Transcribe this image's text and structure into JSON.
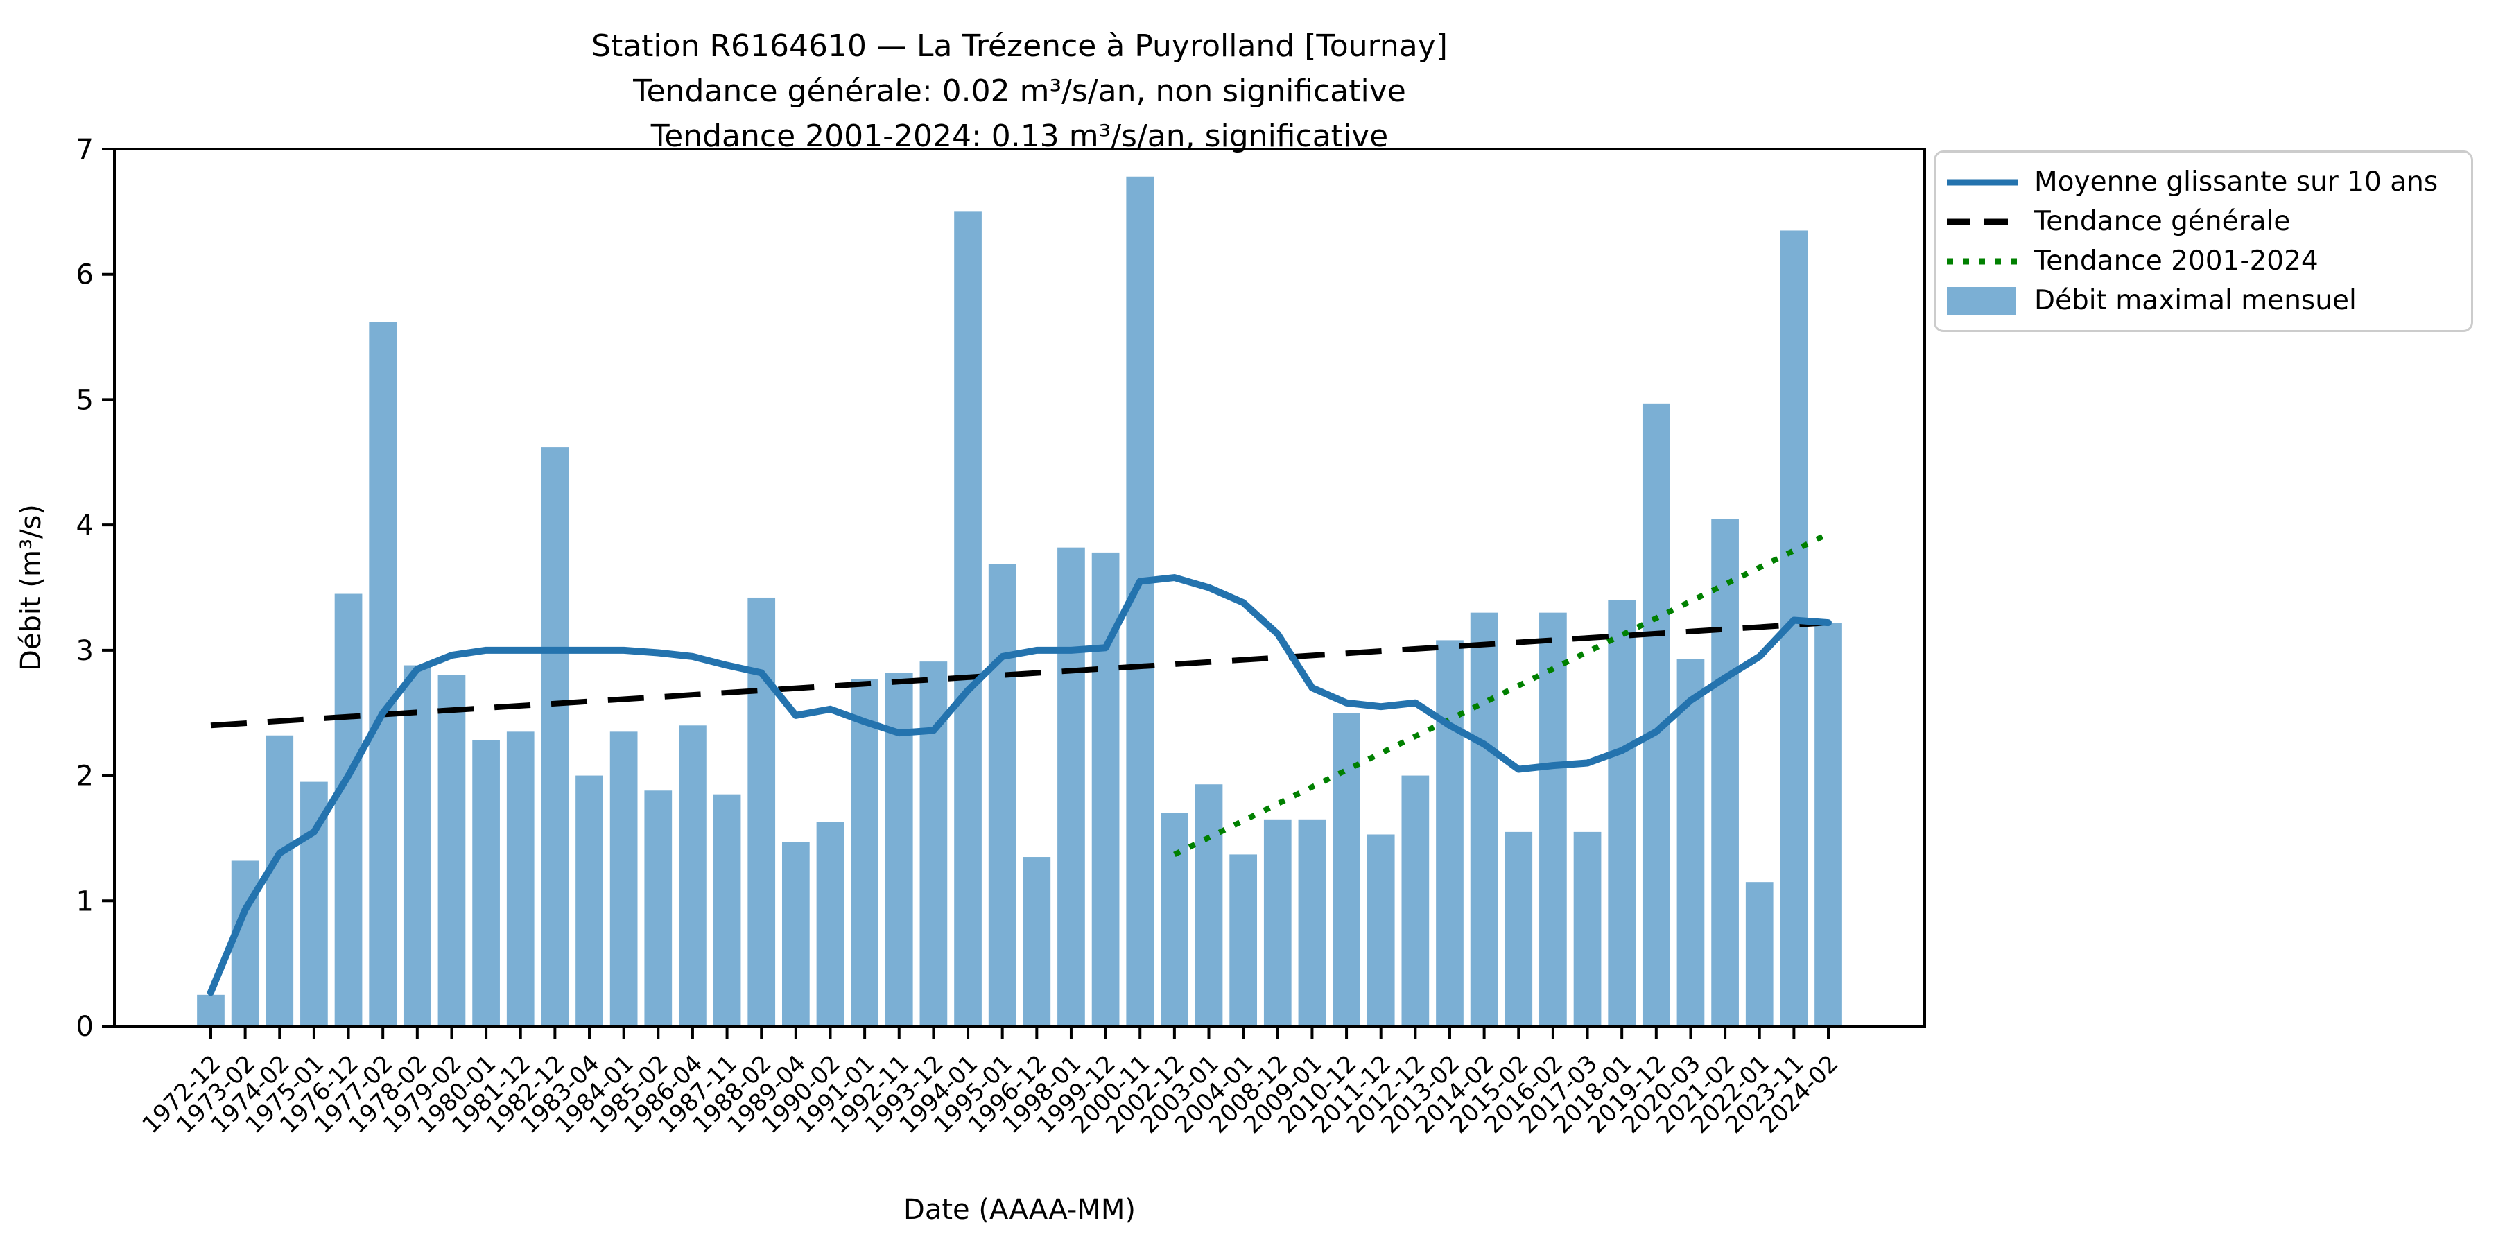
{
  "figure": {
    "title_line1": "Station R6164610 — La Trézence à Puyrolland [Tournay]",
    "title_line2": "Tendance générale: 0.02 m³/s/an, non significative",
    "title_line3": "Tendance 2001-2024: 0.13 m³/s/an, significative"
  },
  "axes": {
    "xlabel": "Date (AAAA-MM)",
    "ylabel": "Débit (m³/s)",
    "yticks": [
      0,
      1,
      2,
      3,
      4,
      5,
      6,
      7
    ],
    "ylim": [
      0,
      7
    ]
  },
  "colors": {
    "bar": "#7bafd4",
    "rolling_mean_line": "#2473ae",
    "general_trend": "#000000",
    "trend_2001_2024": "#008000",
    "axis": "#000000",
    "legend_border": "#cccccc",
    "text": "#000000"
  },
  "legend": {
    "items": [
      {
        "label": "Moyenne glissante sur 10 ans",
        "swatch": "line-solid",
        "color": "#2473ae"
      },
      {
        "label": "Tendance générale",
        "swatch": "line-dashed",
        "color": "#000000"
      },
      {
        "label": "Tendance 2001-2024",
        "swatch": "line-dotted",
        "color": "#008000"
      },
      {
        "label": "Débit maximal mensuel",
        "swatch": "patch",
        "color": "#7bafd4"
      }
    ]
  },
  "chart_data": {
    "type": "bar",
    "title": "Station R6164610 — La Trézence à Puyrolland [Tournay]",
    "subtitle1": "Tendance générale: 0.02 m³/s/an, non significative",
    "subtitle2": "Tendance 2001-2024: 0.13 m³/s/an, significative",
    "xlabel": "Date (AAAA-MM)",
    "ylabel": "Débit (m³/s)",
    "ylim": [
      0,
      7
    ],
    "grid": false,
    "legend_position": "upper right, outside axes",
    "categories": [
      "1972-12",
      "1973-02",
      "1974-02",
      "1975-01",
      "1976-12",
      "1977-02",
      "1978-02",
      "1979-02",
      "1980-01",
      "1981-12",
      "1982-12",
      "1983-04",
      "1984-01",
      "1985-02",
      "1986-04",
      "1987-11",
      "1988-02",
      "1989-04",
      "1990-02",
      "1991-01",
      "1992-11",
      "1993-12",
      "1994-01",
      "1995-01",
      "1996-12",
      "1998-01",
      "1999-12",
      "2000-11",
      "2002-12",
      "2003-01",
      "2004-01",
      "2008-12",
      "2009-01",
      "2010-12",
      "2011-12",
      "2012-12",
      "2013-02",
      "2014-02",
      "2015-02",
      "2016-02",
      "2017-03",
      "2018-01",
      "2019-12",
      "2020-03",
      "2021-02",
      "2022-01",
      "2023-11",
      "2024-02"
    ],
    "series": [
      {
        "name": "Débit maximal mensuel",
        "type": "bar",
        "color": "#7bafd4",
        "values": [
          0.25,
          1.32,
          2.32,
          1.95,
          3.45,
          5.62,
          2.88,
          2.8,
          2.28,
          2.35,
          4.62,
          2.0,
          2.35,
          1.88,
          2.4,
          1.85,
          3.42,
          1.47,
          1.63,
          2.77,
          2.82,
          2.91,
          6.5,
          3.69,
          1.35,
          3.82,
          3.78,
          6.78,
          1.7,
          1.93,
          1.37,
          1.65,
          1.65,
          2.5,
          1.53,
          2.0,
          3.08,
          3.3,
          1.55,
          3.3,
          1.55,
          3.4,
          4.97,
          2.93,
          4.05,
          1.15,
          6.35,
          3.22
        ]
      },
      {
        "name": "Moyenne glissante sur 10 ans",
        "type": "line",
        "color": "#2473ae",
        "values": [
          0.27,
          0.93,
          1.38,
          1.55,
          2.0,
          2.5,
          2.85,
          2.96,
          3.0,
          3.0,
          3.0,
          3.0,
          3.0,
          2.98,
          2.95,
          2.88,
          2.82,
          2.48,
          2.53,
          2.43,
          2.34,
          2.36,
          2.68,
          2.95,
          3.0,
          3.0,
          3.02,
          3.55,
          3.58,
          3.5,
          3.38,
          3.13,
          2.7,
          2.58,
          2.55,
          2.58,
          2.4,
          2.25,
          2.05,
          2.08,
          2.1,
          2.2,
          2.35,
          2.6,
          2.78,
          2.95,
          3.24,
          3.22
        ]
      },
      {
        "name": "Tendance générale",
        "type": "trendline",
        "color": "#000000",
        "style": "dashed",
        "start": {
          "index": 0,
          "value": 2.4
        },
        "end": {
          "index": 47,
          "value": 3.22
        }
      },
      {
        "name": "Tendance 2001-2024",
        "type": "trendline",
        "color": "#008000",
        "style": "dotted",
        "start": {
          "index": 28,
          "value": 1.37
        },
        "end": {
          "index": 47,
          "value": 3.93
        }
      }
    ]
  }
}
